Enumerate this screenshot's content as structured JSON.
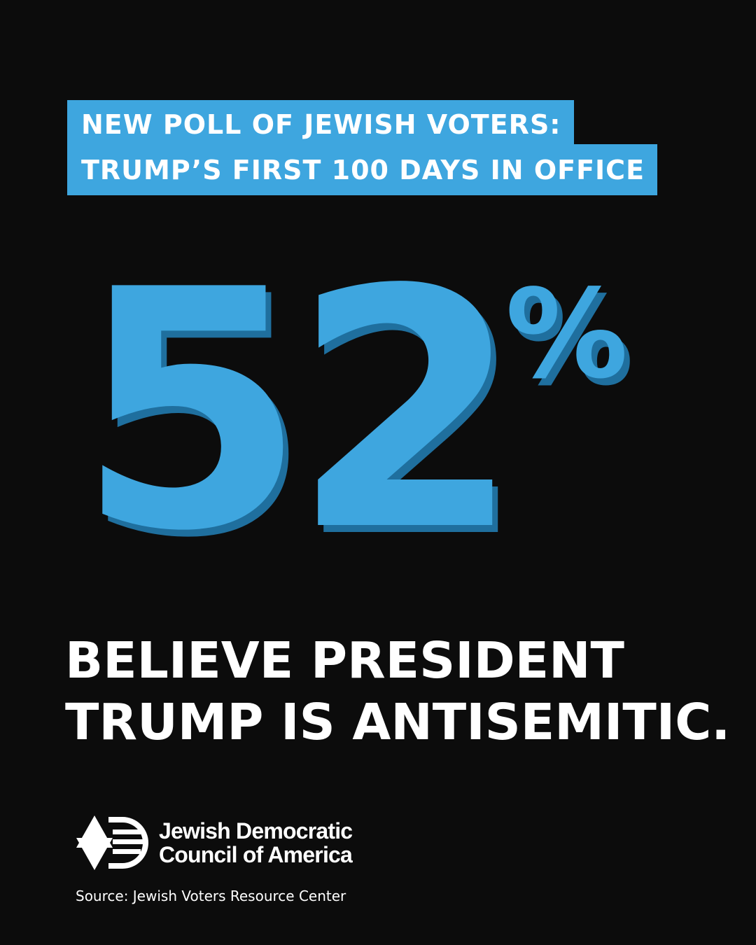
{
  "headline": {
    "line1": "NEW POLL OF JEWISH VOTERS:",
    "line2": "TRUMP’S FIRST 100 DAYS IN OFFICE"
  },
  "stat": {
    "number": "52",
    "symbol": "%"
  },
  "statement": {
    "line1": "BELIEVE PRESIDENT",
    "line2": "TRUMP IS ANTISEMITIC."
  },
  "organization": {
    "name_line1": "Jewish Democratic",
    "name_line2": "Council of America",
    "logo_icon": "star-of-david-flag-icon"
  },
  "source": "Source: Jewish Voters Resource Center",
  "colors": {
    "background": "#0c0c0c",
    "accent": "#3ea6df",
    "accent_shadow": "#1f6f9e",
    "text": "#ffffff"
  }
}
